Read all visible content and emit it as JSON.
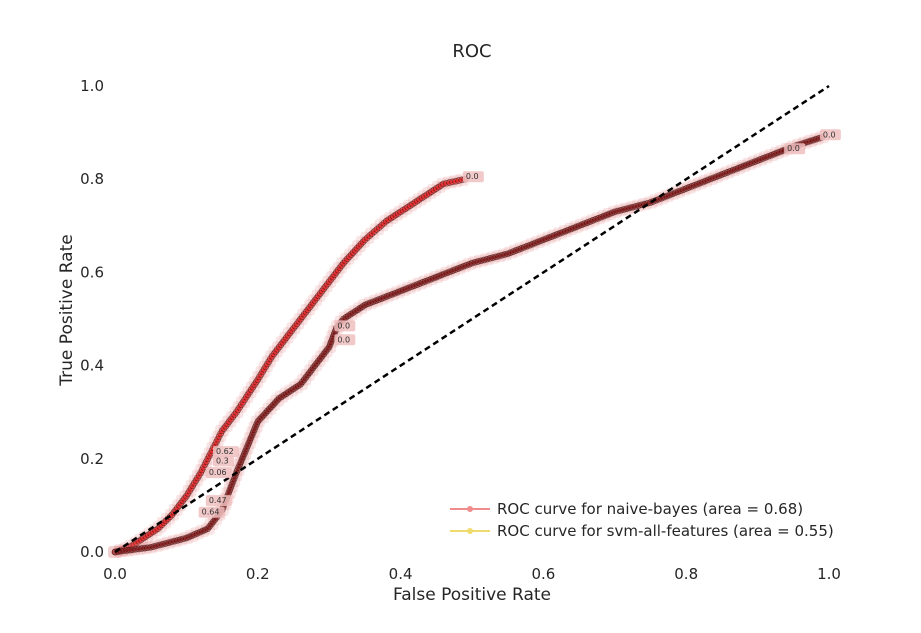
{
  "chart_data": {
    "type": "line",
    "title": "ROC",
    "xlabel": "False Positive Rate",
    "ylabel": "True Positive Rate",
    "xlim": [
      0.0,
      1.0
    ],
    "ylim": [
      0.0,
      1.0
    ],
    "x_ticks": [
      "0.0",
      "0.2",
      "0.4",
      "0.6",
      "0.8",
      "1.0"
    ],
    "y_ticks": [
      "0.0",
      "0.2",
      "0.4",
      "0.6",
      "0.8",
      "1.0"
    ],
    "grid": false,
    "legend_position": "lower-right",
    "series": [
      {
        "name": "ROC curve for naive-bayes (area = 0.68)",
        "color": "#e8292b",
        "legend_color": "#f08c8c",
        "x": [
          0.0,
          0.02,
          0.04,
          0.06,
          0.08,
          0.1,
          0.12,
          0.13,
          0.14,
          0.15,
          0.17,
          0.2,
          0.22,
          0.25,
          0.28,
          0.3,
          0.32,
          0.35,
          0.38,
          0.4,
          0.42,
          0.44,
          0.46,
          0.49
        ],
        "y": [
          0.0,
          0.01,
          0.03,
          0.05,
          0.08,
          0.12,
          0.17,
          0.2,
          0.23,
          0.26,
          0.3,
          0.37,
          0.42,
          0.48,
          0.54,
          0.58,
          0.62,
          0.67,
          0.71,
          0.73,
          0.75,
          0.77,
          0.79,
          0.8
        ]
      },
      {
        "name": "ROC curve for svm-all-features (area = 0.55)",
        "color": "#8b2323",
        "legend_color": "#f0dc6e",
        "x": [
          0.0,
          0.05,
          0.1,
          0.13,
          0.15,
          0.17,
          0.2,
          0.23,
          0.26,
          0.28,
          0.3,
          0.31,
          0.32,
          0.35,
          0.4,
          0.45,
          0.5,
          0.55,
          0.6,
          0.65,
          0.7,
          0.75,
          0.8,
          0.85,
          0.9,
          0.95,
          0.99
        ],
        "y": [
          0.0,
          0.01,
          0.03,
          0.05,
          0.09,
          0.17,
          0.28,
          0.33,
          0.36,
          0.4,
          0.44,
          0.48,
          0.5,
          0.53,
          0.56,
          0.59,
          0.62,
          0.64,
          0.67,
          0.7,
          0.73,
          0.75,
          0.78,
          0.81,
          0.84,
          0.87,
          0.89
        ]
      }
    ],
    "diagonal": {
      "x": [
        0.0,
        1.0
      ],
      "y": [
        0.0,
        1.0
      ],
      "color": "#000000",
      "style": "dashed"
    },
    "threshold_annotations": [
      {
        "text": "0.0",
        "x": 0.49,
        "y": 0.8,
        "series": 0
      },
      {
        "text": "0.0",
        "x": 0.99,
        "y": 0.89,
        "series": 1
      },
      {
        "text": "0.0",
        "x": 0.94,
        "y": 0.86,
        "series": 1
      },
      {
        "text": "0.0",
        "x": 0.31,
        "y": 0.48,
        "series": 1
      },
      {
        "text": "0.0",
        "x": 0.31,
        "y": 0.45,
        "series": 1
      },
      {
        "text": "0.62",
        "x": 0.14,
        "y": 0.21,
        "series": 0
      },
      {
        "text": "0.3",
        "x": 0.14,
        "y": 0.19,
        "series": 0
      },
      {
        "text": "0.06",
        "x": 0.13,
        "y": 0.165,
        "series": 0
      },
      {
        "text": "0.47",
        "x": 0.13,
        "y": 0.105,
        "series": 0
      },
      {
        "text": "0.64",
        "x": 0.12,
        "y": 0.08,
        "series": 0
      }
    ]
  }
}
